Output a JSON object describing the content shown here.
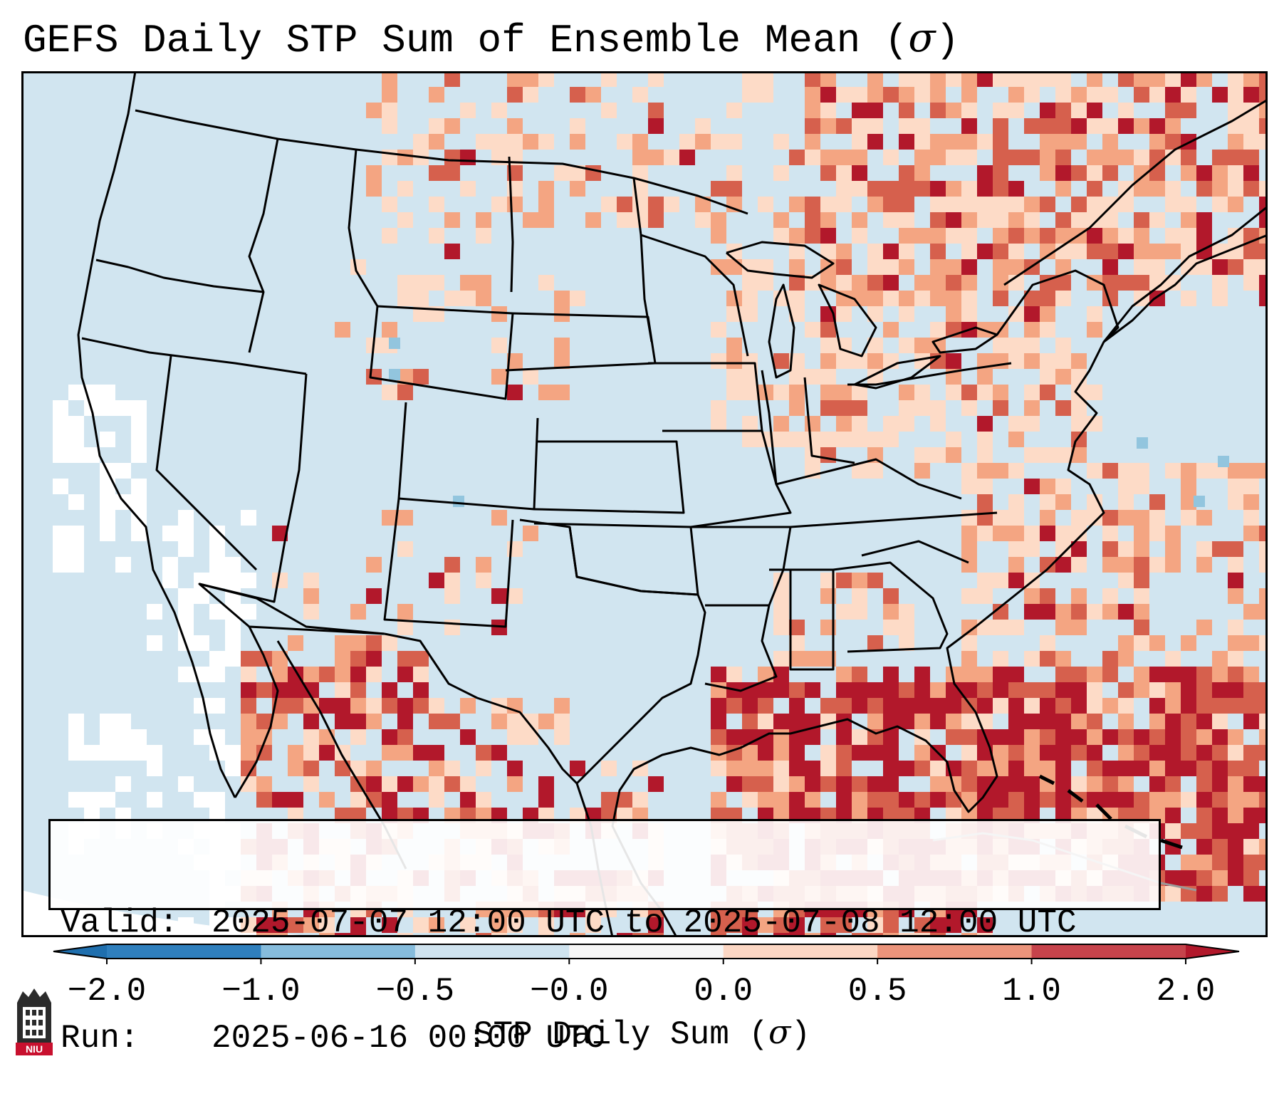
{
  "title": {
    "text": "GEFS Daily STP Sum of Ensemble Mean (",
    "symbol": "σ",
    "close": ")"
  },
  "map": {
    "region": "Continental United States with southern Canada, northern Mexico, Gulf of Mexico and western Atlantic",
    "field": "STP daily sum anomaly",
    "highlights": [
      "Strong positive anomalies over Gulf of Mexico and western Atlantic",
      "Positive anomalies over Great Lakes, Ontario and Quebec",
      "Positive anomalies over Gulf of California and northwestern Mexico",
      "Near-zero values over most of western and central United States"
    ]
  },
  "info": {
    "valid_key": "Valid:",
    "valid_value": "2025-07-07 12:00 UTC to 2025-07-08 12:00 UTC",
    "run_key": "Run:",
    "run_value": "2025-06-16 00:00 UTC"
  },
  "colorbar": {
    "label_text": "STP Daily Sum (",
    "label_symbol": "σ",
    "label_close": ")",
    "ticks": [
      "−2.0",
      "−1.0",
      "−0.5",
      "−0.0",
      "0.0",
      "0.5",
      "1.0",
      "2.0"
    ],
    "colors": [
      "#2f7fbd",
      "#86bcdc",
      "#cfe3ef",
      "#f6f6f6",
      "#fcd7c4",
      "#eb947b",
      "#c6434b"
    ],
    "extend_low_color": "#1f6fae",
    "extend_high_color": "#b2182b"
  },
  "colors": {
    "neutral": "#d1e5f0",
    "white": "#ffffff",
    "weak_pos": "#fddbc7",
    "mod_pos": "#f4a582",
    "strong_pos": "#d6604d",
    "extreme_pos": "#b2182b",
    "weak_neg": "#92c5de",
    "state_lines": "#000000"
  },
  "logo": {
    "label": "NIU"
  }
}
